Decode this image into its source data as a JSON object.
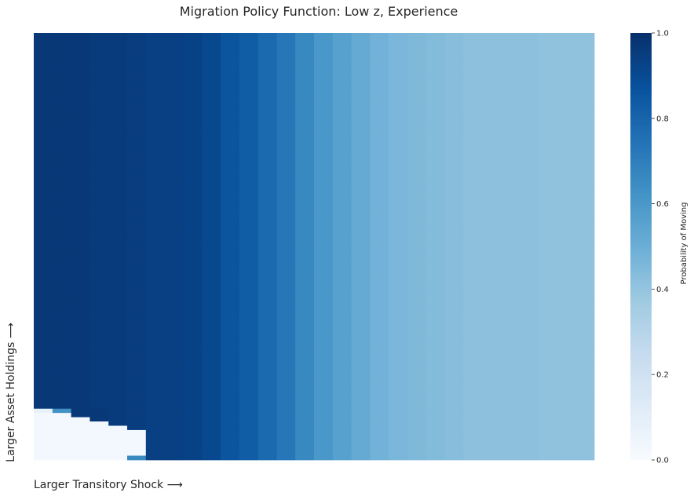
{
  "chart_data": {
    "type": "heatmap",
    "title": "Migration Policy Function: Low z, Experience",
    "xlabel": "Larger Transitory Shock ⟶",
    "ylabel": "Larger Asset Holdings ⟶",
    "n_cols": 30,
    "n_rows": 100,
    "column_values": [
      0.97,
      0.97,
      0.97,
      0.96,
      0.96,
      0.95,
      0.94,
      0.94,
      0.93,
      0.91,
      0.86,
      0.83,
      0.78,
      0.73,
      0.66,
      0.6,
      0.56,
      0.52,
      0.48,
      0.46,
      0.45,
      0.44,
      0.43,
      0.42,
      0.42,
      0.42,
      0.42,
      0.41,
      0.41,
      0.41
    ],
    "low_asset_rows": [
      {
        "row": 88,
        "values": [
          0.08,
          0.63,
          0.97,
          0.97,
          0.96,
          0.95,
          0.94,
          0.94,
          0.93,
          0.91,
          0.86,
          0.83,
          0.78,
          0.73,
          0.66,
          0.6,
          0.56,
          0.52,
          0.48,
          0.46,
          0.45,
          0.44,
          0.43,
          0.42,
          0.42,
          0.42,
          0.42,
          0.41,
          0.41,
          0.41
        ]
      },
      {
        "row": 89,
        "values": [
          0.02,
          0.02,
          0.97,
          0.97,
          0.96,
          0.95,
          0.94,
          0.94,
          0.93,
          0.91,
          0.86,
          0.83,
          0.78,
          0.73,
          0.66,
          0.6,
          0.56,
          0.52,
          0.48,
          0.46,
          0.45,
          0.44,
          0.43,
          0.42,
          0.42,
          0.42,
          0.42,
          0.41,
          0.41,
          0.41
        ]
      },
      {
        "row": 90,
        "values": [
          0.02,
          0.02,
          0.02,
          0.97,
          0.96,
          0.95,
          0.94,
          0.94,
          0.93,
          0.91,
          0.86,
          0.83,
          0.78,
          0.73,
          0.66,
          0.6,
          0.56,
          0.52,
          0.48,
          0.46,
          0.45,
          0.44,
          0.43,
          0.42,
          0.42,
          0.42,
          0.42,
          0.41,
          0.41,
          0.41
        ]
      },
      {
        "row": 91,
        "values": [
          0.02,
          0.02,
          0.02,
          0.02,
          0.96,
          0.95,
          0.94,
          0.94,
          0.93,
          0.91,
          0.86,
          0.83,
          0.78,
          0.73,
          0.66,
          0.6,
          0.56,
          0.52,
          0.48,
          0.46,
          0.45,
          0.44,
          0.43,
          0.42,
          0.42,
          0.42,
          0.42,
          0.41,
          0.41,
          0.41
        ]
      },
      {
        "row": 92,
        "values": [
          0.02,
          0.02,
          0.02,
          0.02,
          0.02,
          0.95,
          0.94,
          0.94,
          0.93,
          0.91,
          0.86,
          0.83,
          0.78,
          0.73,
          0.66,
          0.6,
          0.56,
          0.52,
          0.48,
          0.46,
          0.45,
          0.44,
          0.43,
          0.42,
          0.42,
          0.42,
          0.42,
          0.41,
          0.41,
          0.41
        ]
      },
      {
        "row": 93,
        "values": [
          0.02,
          0.02,
          0.02,
          0.02,
          0.02,
          0.02,
          0.94,
          0.94,
          0.93,
          0.91,
          0.86,
          0.83,
          0.78,
          0.73,
          0.66,
          0.6,
          0.56,
          0.52,
          0.48,
          0.46,
          0.45,
          0.44,
          0.43,
          0.42,
          0.42,
          0.42,
          0.42,
          0.41,
          0.41,
          0.41
        ]
      },
      {
        "row": 94,
        "values": [
          0.02,
          0.02,
          0.02,
          0.02,
          0.02,
          0.02,
          0.94,
          0.94,
          0.93,
          0.91,
          0.86,
          0.83,
          0.78,
          0.73,
          0.66,
          0.6,
          0.56,
          0.52,
          0.48,
          0.46,
          0.45,
          0.44,
          0.43,
          0.42,
          0.42,
          0.42,
          0.42,
          0.41,
          0.41,
          0.41
        ]
      },
      {
        "row": 95,
        "values": [
          0.02,
          0.02,
          0.02,
          0.02,
          0.02,
          0.02,
          0.94,
          0.94,
          0.93,
          0.91,
          0.86,
          0.83,
          0.78,
          0.73,
          0.66,
          0.6,
          0.56,
          0.52,
          0.48,
          0.46,
          0.45,
          0.44,
          0.43,
          0.42,
          0.42,
          0.42,
          0.42,
          0.41,
          0.41,
          0.41
        ]
      },
      {
        "row": 96,
        "values": [
          0.02,
          0.02,
          0.02,
          0.02,
          0.02,
          0.02,
          0.94,
          0.94,
          0.93,
          0.91,
          0.86,
          0.83,
          0.78,
          0.73,
          0.66,
          0.6,
          0.56,
          0.52,
          0.48,
          0.46,
          0.45,
          0.44,
          0.43,
          0.42,
          0.42,
          0.42,
          0.42,
          0.41,
          0.41,
          0.41
        ]
      },
      {
        "row": 97,
        "values": [
          0.02,
          0.02,
          0.02,
          0.02,
          0.02,
          0.02,
          0.94,
          0.94,
          0.93,
          0.91,
          0.86,
          0.83,
          0.78,
          0.73,
          0.66,
          0.6,
          0.56,
          0.52,
          0.48,
          0.46,
          0.45,
          0.44,
          0.43,
          0.42,
          0.42,
          0.42,
          0.42,
          0.41,
          0.41,
          0.41
        ]
      },
      {
        "row": 98,
        "values": [
          0.02,
          0.02,
          0.02,
          0.02,
          0.02,
          0.02,
          0.94,
          0.94,
          0.93,
          0.91,
          0.86,
          0.83,
          0.78,
          0.73,
          0.66,
          0.6,
          0.56,
          0.52,
          0.48,
          0.46,
          0.45,
          0.44,
          0.43,
          0.42,
          0.42,
          0.42,
          0.42,
          0.41,
          0.41,
          0.41
        ]
      },
      {
        "row": 99,
        "values": [
          0.02,
          0.02,
          0.02,
          0.02,
          0.02,
          0.66,
          0.94,
          0.94,
          0.93,
          0.91,
          0.86,
          0.83,
          0.78,
          0.73,
          0.66,
          0.6,
          0.56,
          0.52,
          0.48,
          0.46,
          0.45,
          0.44,
          0.43,
          0.42,
          0.42,
          0.42,
          0.42,
          0.41,
          0.41,
          0.41
        ]
      }
    ],
    "value_range": [
      0,
      1
    ],
    "colormap": "Blues",
    "colorbar": {
      "label": "Probability of Moving",
      "ticks": [
        "0.0",
        "0.2",
        "0.4",
        "0.6",
        "0.8",
        "1.0"
      ],
      "tick_values": [
        0.0,
        0.2,
        0.4,
        0.6,
        0.8,
        1.0
      ],
      "placement": "right"
    },
    "grid": false,
    "x_ticks_shown": false,
    "y_ticks_shown": false
  }
}
